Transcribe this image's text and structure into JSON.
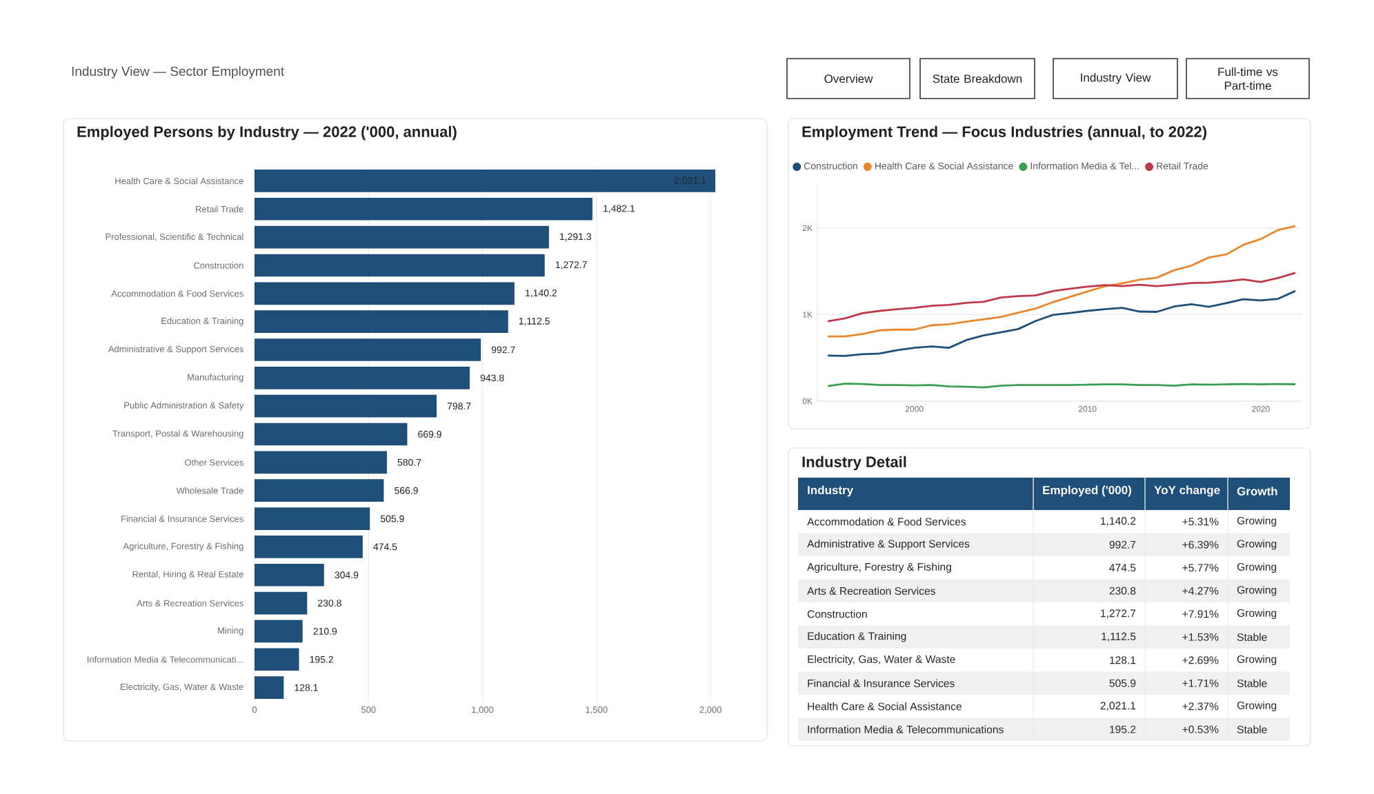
{
  "chart_data": [
    {
      "type": "other",
      "title": "Industry View — Sector Employment",
      "annotations": [
        "Overview",
        "State Breakdown",
        "Industry View",
        "Full-time vs Part-time"
      ]
    },
    {
      "type": "bar",
      "orientation": "horizontal",
      "title": "Employed Persons by Industry — 2022 ('000, annual)",
      "color": "#1f4e79",
      "grid": "x",
      "categories": [
        "Health Care & Social Assistance",
        "Retail Trade",
        "Professional, Scientific & Technical",
        "Construction",
        "Accommodation & Food Services",
        "Education & Training",
        "Administrative & Support Services",
        "Manufacturing",
        "Public Administration & Safety",
        "Transport, Postal & Warehousing",
        "Other Services",
        "Wholesale Trade",
        "Financial & Insurance Services",
        "Agriculture, Forestry & Fishing",
        "Rental, Hiring & Real Estate",
        "Arts & Recreation Services",
        "Mining",
        "Information Media & Telecommunicati...",
        "Electricity, Gas, Water & Waste"
      ],
      "values": [
        2021.1,
        1482.1,
        1291.3,
        1272.7,
        1140.2,
        1112.5,
        992.7,
        943.8,
        798.7,
        669.9,
        580.7,
        566.9,
        505.9,
        474.5,
        304.9,
        230.8,
        210.9,
        195.2,
        128.1
      ],
      "value_labels": [
        "2,021.1",
        "1,482.1",
        "1,291.3",
        "1,272.7",
        "1,140.2",
        "1,112.5",
        "992.7",
        "943.8",
        "798.7",
        "669.9",
        "580.7",
        "566.9",
        "505.9",
        "474.5",
        "304.9",
        "230.8",
        "210.9",
        "195.2",
        "128.1"
      ],
      "xlim": [
        0,
        2030
      ],
      "xticks": [
        0,
        500,
        {
          "value": 1000,
          "label": "1,000"
        },
        {
          "value": 1500,
          "label": "1,500"
        },
        {
          "value": 2000,
          "label": "2,000"
        }
      ]
    },
    {
      "type": "line",
      "title": "Employment Trend — Focus Industries (annual, to 2022)",
      "legend": "top",
      "grid": "y",
      "x": [
        1995,
        1996,
        1997,
        1998,
        1999,
        2000,
        2001,
        2002,
        2003,
        2004,
        2005,
        2006,
        2007,
        2008,
        2009,
        2010,
        2011,
        2012,
        2013,
        2014,
        2015,
        2016,
        2017,
        2018,
        2019,
        2020,
        2021,
        2022
      ],
      "xlim": [
        1994.4,
        2022.4
      ],
      "xticks": [
        2000,
        2010,
        2020
      ],
      "ylim": [
        0,
        2500
      ],
      "yticks": [
        {
          "value": 0,
          "label": "0K"
        },
        {
          "value": 1000,
          "label": "1K"
        },
        {
          "value": 2000,
          "label": "2K"
        }
      ],
      "series": [
        {
          "name": "Construction",
          "color": "#1f4e79",
          "values": [
            527,
            523,
            543,
            550,
            589,
            616,
            632,
            616,
            705,
            760,
            795,
            833,
            926,
            996,
            1019,
            1043,
            1062,
            1078,
            1035,
            1031,
            1093,
            1120,
            1089,
            1132,
            1178,
            1163,
            1182,
            1273
          ]
        },
        {
          "name": "Health Care & Social Assistance",
          "color": "#e8872e",
          "values": [
            748,
            748,
            775,
            818,
            826,
            826,
            876,
            888,
            919,
            946,
            973,
            1023,
            1070,
            1143,
            1205,
            1267,
            1326,
            1360,
            1403,
            1426,
            1512,
            1566,
            1659,
            1694,
            1806,
            1872,
            1977,
            2021
          ]
        },
        {
          "name": "Information Media & Tel...",
          "color": "#3a9e52",
          "values": [
            174,
            202,
            198,
            186,
            186,
            182,
            186,
            171,
            167,
            159,
            178,
            186,
            186,
            186,
            186,
            190,
            194,
            194,
            186,
            186,
            178,
            194,
            190,
            194,
            198,
            194,
            198,
            195
          ]
        },
        {
          "name": "Retail Trade",
          "color": "#c0394b",
          "values": [
            922,
            957,
            1016,
            1043,
            1062,
            1078,
            1101,
            1112,
            1136,
            1147,
            1198,
            1213,
            1221,
            1271,
            1298,
            1322,
            1341,
            1329,
            1345,
            1329,
            1345,
            1364,
            1368,
            1384,
            1407,
            1376,
            1422,
            1482
          ]
        }
      ]
    },
    {
      "type": "other",
      "title": "Industry Detail",
      "categories": [
        "Industry",
        "Employed ('000)",
        "YoY change",
        "Growth"
      ],
      "y_categories": [
        "Accommodation & Food Services",
        "Administrative & Support Services",
        "Agriculture, Forestry & Fishing",
        "Arts & Recreation Services",
        "Construction",
        "Education & Training",
        "Electricity, Gas, Water & Waste",
        "Financial & Insurance Services",
        "Health Care & Social Assistance",
        "Information Media & Telecommunications"
      ],
      "cell_labels": [
        [
          "1,140.2",
          "+5.31%",
          "Growing"
        ],
        [
          "992.7",
          "+6.39%",
          "Growing"
        ],
        [
          "474.5",
          "+5.77%",
          "Growing"
        ],
        [
          "230.8",
          "+4.27%",
          "Growing"
        ],
        [
          "1,272.7",
          "+7.91%",
          "Growing"
        ],
        [
          "1,112.5",
          "+1.53%",
          "Stable"
        ],
        [
          "128.1",
          "+2.69%",
          "Growing"
        ],
        [
          "505.9",
          "+1.71%",
          "Stable"
        ],
        [
          "2,021.1",
          "+2.37%",
          "Growing"
        ],
        [
          "195.2",
          "+0.53%",
          "Stable"
        ]
      ]
    }
  ]
}
